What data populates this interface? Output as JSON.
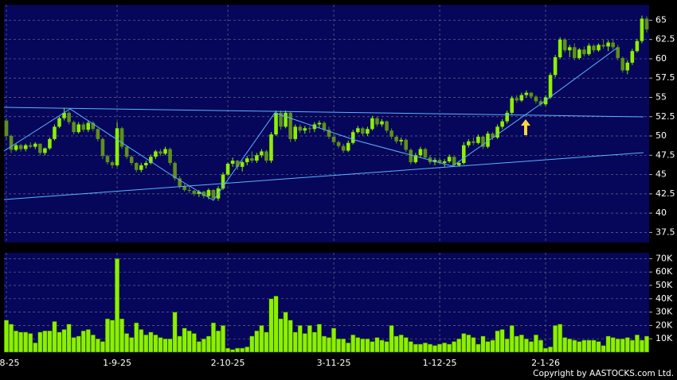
{
  "chart_data": [
    {
      "type": "candlestick",
      "categories": [
        "8-25",
        null,
        null,
        null,
        null,
        null,
        null,
        null,
        null,
        null,
        null,
        null,
        null,
        null,
        null,
        null,
        null,
        null,
        null,
        null,
        null,
        null,
        null,
        "1-9-25",
        null,
        null,
        null,
        null,
        null,
        null,
        null,
        null,
        null,
        null,
        null,
        null,
        null,
        null,
        null,
        null,
        null,
        null,
        null,
        null,
        null,
        null,
        "2-10-25",
        null,
        null,
        null,
        null,
        null,
        null,
        null,
        null,
        null,
        null,
        null,
        null,
        null,
        null,
        null,
        null,
        null,
        null,
        null,
        null,
        null,
        "3-11-25",
        null,
        null,
        null,
        null,
        null,
        null,
        null,
        null,
        null,
        null,
        null,
        null,
        null,
        null,
        null,
        null,
        null,
        null,
        null,
        null,
        null,
        "1-12-25",
        null,
        null,
        null,
        null,
        null,
        null,
        null,
        null,
        null,
        null,
        null,
        null,
        null,
        null,
        null,
        null,
        null,
        null,
        null,
        null,
        null,
        "2-1-26",
        null,
        null,
        null,
        null,
        null,
        null,
        null,
        null,
        null,
        null,
        null,
        null,
        null,
        null,
        null,
        null,
        null,
        null,
        null,
        null,
        null
      ],
      "ohlc": [
        [
          52,
          52.3,
          49.5,
          50
        ],
        [
          50,
          50.2,
          47.8,
          48.2
        ],
        [
          48.2,
          49,
          48,
          48.8
        ],
        [
          48.8,
          49,
          48,
          48.3
        ],
        [
          48.3,
          49,
          48,
          48.8
        ],
        [
          48.8,
          49.2,
          48.4,
          48.6
        ],
        [
          48.6,
          49.2,
          48.3,
          49
        ],
        [
          49,
          49,
          47.5,
          47.8
        ],
        [
          47.8,
          48.5,
          47.5,
          48.4
        ],
        [
          48.4,
          49.8,
          48.2,
          49.6
        ],
        [
          49.6,
          51.5,
          49.4,
          51.2
        ],
        [
          51.2,
          52.5,
          51,
          52.3
        ],
        [
          52.3,
          53.6,
          52,
          53
        ],
        [
          53,
          53.2,
          51.5,
          51.8
        ],
        [
          51.8,
          52,
          50.2,
          50.5
        ],
        [
          50.5,
          51.8,
          50.3,
          51.5
        ],
        [
          51.5,
          51.8,
          50.5,
          50.8
        ],
        [
          50.8,
          52,
          50.5,
          51.7
        ],
        [
          51.7,
          51.9,
          50.6,
          50.9
        ],
        [
          50.9,
          51,
          49.3,
          49.6
        ],
        [
          49.6,
          49.8,
          47,
          47.4
        ],
        [
          47.4,
          47.6,
          46.3,
          46.6
        ],
        [
          46.6,
          46.8,
          45.8,
          46.2
        ],
        [
          46.2,
          51.8,
          46,
          51
        ],
        [
          51,
          51.2,
          48.3,
          48.6
        ],
        [
          48.6,
          48.8,
          47,
          47.3
        ],
        [
          47.3,
          47.5,
          46.2,
          46.5
        ],
        [
          46.5,
          46.6,
          45.3,
          45.6
        ],
        [
          45.6,
          46.5,
          45.3,
          46.2
        ],
        [
          46.2,
          46.8,
          45.8,
          46.5
        ],
        [
          46.5,
          47.6,
          46.3,
          47.3
        ],
        [
          47.3,
          48.2,
          47,
          48
        ],
        [
          48,
          48.3,
          47.4,
          47.7
        ],
        [
          47.7,
          48.6,
          47.5,
          48.3
        ],
        [
          48.3,
          48.5,
          46.2,
          46.5
        ],
        [
          46.5,
          46.7,
          44.2,
          44.5
        ],
        [
          44.5,
          44.8,
          43.2,
          43.5
        ],
        [
          43.5,
          43.8,
          42.8,
          43
        ],
        [
          43,
          43.5,
          42.6,
          42.9
        ],
        [
          42.9,
          43,
          42.2,
          42.5
        ],
        [
          42.5,
          43,
          42.1,
          42.8
        ],
        [
          42.8,
          42.9,
          41.9,
          42.2
        ],
        [
          42.2,
          43.2,
          41.8,
          43
        ],
        [
          43,
          43.1,
          41.6,
          41.9
        ],
        [
          41.9,
          43.5,
          41.6,
          43.2
        ],
        [
          43.2,
          45.3,
          43,
          45
        ],
        [
          45,
          46.6,
          44.8,
          46.4
        ],
        [
          46.4,
          47.2,
          46,
          46.8
        ],
        [
          46.8,
          46.9,
          45.6,
          46
        ],
        [
          46,
          46.8,
          45.4,
          46.6
        ],
        [
          46.6,
          47.4,
          46.2,
          47.1
        ],
        [
          47.1,
          48,
          46.5,
          46.8
        ],
        [
          46.8,
          47.8,
          46.5,
          47.5
        ],
        [
          47.5,
          48.3,
          47.2,
          48
        ],
        [
          48,
          48.2,
          46.5,
          46.8
        ],
        [
          46.8,
          50.5,
          46.5,
          50.2
        ],
        [
          50.2,
          53.3,
          50,
          53
        ],
        [
          53,
          53.3,
          50.8,
          51.2
        ],
        [
          51.2,
          53.3,
          51,
          53
        ],
        [
          53,
          53.2,
          49.2,
          49.6
        ],
        [
          49.6,
          51.5,
          49.3,
          51.2
        ],
        [
          51.2,
          51.5,
          50.4,
          50.7
        ],
        [
          50.7,
          51.3,
          50.3,
          51
        ],
        [
          51,
          51.3,
          50.4,
          50.9
        ],
        [
          50.9,
          51.8,
          50.5,
          51.5
        ],
        [
          51.5,
          52,
          51,
          51.7
        ],
        [
          51.7,
          51.9,
          50.5,
          50.8
        ],
        [
          50.8,
          51.2,
          49.6,
          49.9
        ],
        [
          49.9,
          50.2,
          48.9,
          49.2
        ],
        [
          49.2,
          49.4,
          48.4,
          48.7
        ],
        [
          48.7,
          49,
          47.8,
          48.1
        ],
        [
          48.1,
          49.4,
          47.9,
          49.1
        ],
        [
          49.1,
          50.8,
          48.9,
          50.5
        ],
        [
          50.5,
          51.3,
          50.3,
          51
        ],
        [
          51,
          51.2,
          50,
          50.3
        ],
        [
          50.3,
          51.2,
          50,
          50.9
        ],
        [
          50.9,
          52.6,
          50.7,
          52.3
        ],
        [
          52.3,
          52.5,
          51.2,
          51.5
        ],
        [
          51.5,
          52.2,
          51.2,
          51.9
        ],
        [
          51.9,
          52,
          50.4,
          50.7
        ],
        [
          50.7,
          51,
          49.6,
          49.9
        ],
        [
          49.9,
          50.1,
          49,
          49.3
        ],
        [
          49.3,
          49.8,
          48.8,
          49.5
        ],
        [
          49.5,
          49.7,
          47.9,
          48.2
        ],
        [
          48.2,
          48.4,
          46.3,
          46.6
        ],
        [
          46.6,
          47.8,
          46.4,
          47.5
        ],
        [
          47.5,
          48.6,
          47.2,
          48.3
        ],
        [
          48.3,
          48.5,
          47,
          47.2
        ],
        [
          47.2,
          47.5,
          46.3,
          46.6
        ],
        [
          46.6,
          47.2,
          46.2,
          46.9
        ],
        [
          46.9,
          47.2,
          46.3,
          46.5
        ],
        [
          46.5,
          47,
          46,
          46.7
        ],
        [
          46.7,
          47.6,
          46.5,
          47.3
        ],
        [
          47.3,
          47.4,
          46,
          46.2
        ],
        [
          46.2,
          46.8,
          46,
          46.5
        ],
        [
          46.5,
          49.2,
          46.3,
          48.8
        ],
        [
          48.8,
          49.6,
          48.5,
          49.3
        ],
        [
          49.3,
          49.8,
          48.8,
          49.1
        ],
        [
          49.1,
          50.2,
          48.9,
          49.9
        ],
        [
          49.9,
          50,
          48.3,
          48.6
        ],
        [
          48.6,
          50.6,
          48.4,
          50.3
        ],
        [
          50.3,
          50.5,
          49.5,
          49.8
        ],
        [
          49.8,
          51.5,
          49.6,
          51.2
        ],
        [
          51.2,
          52.2,
          50.9,
          51.9
        ],
        [
          51.9,
          53.3,
          51.6,
          53
        ],
        [
          53,
          55.2,
          52.8,
          54.9
        ],
        [
          54.9,
          55.3,
          54.3,
          54.6
        ],
        [
          54.6,
          55.6,
          54.4,
          55.3
        ],
        [
          55.3,
          55.9,
          55,
          55.6
        ],
        [
          55.6,
          55.7,
          54.8,
          55.1
        ],
        [
          55.1,
          55.3,
          54.2,
          54.5
        ],
        [
          54.5,
          54.8,
          53.8,
          54.1
        ],
        [
          54.1,
          55.3,
          53.9,
          55
        ],
        [
          55,
          58.2,
          54.8,
          57.9
        ],
        [
          57.9,
          60.5,
          57.6,
          60.2
        ],
        [
          60.2,
          62.8,
          60,
          62.5
        ],
        [
          62.5,
          62.7,
          60.8,
          61.1
        ],
        [
          61.1,
          61.8,
          60.2,
          61.5
        ],
        [
          61.5,
          62,
          59.8,
          60.1
        ],
        [
          60.1,
          61.4,
          59.9,
          61.2
        ],
        [
          61.2,
          61.6,
          60.3,
          60.6
        ],
        [
          60.6,
          62,
          60.4,
          61.7
        ],
        [
          61.7,
          61.9,
          60.8,
          61.1
        ],
        [
          61.1,
          62,
          60.9,
          61.8
        ],
        [
          61.8,
          62.5,
          61.3,
          61.6
        ],
        [
          61.6,
          62.4,
          61,
          62.1
        ],
        [
          62.1,
          62.6,
          61.2,
          61.5
        ],
        [
          61.5,
          61.8,
          59.8,
          60.1
        ],
        [
          60.1,
          60.3,
          58.2,
          58.5
        ],
        [
          58.5,
          59.8,
          58,
          59.5
        ],
        [
          59.5,
          61.3,
          59.2,
          61
        ],
        [
          61,
          62.6,
          60.8,
          62.3
        ],
        [
          62.3,
          65.6,
          62,
          65.2
        ],
        [
          65.2,
          65.5,
          63.4,
          63.8
        ]
      ],
      "up_color": "#8cf000",
      "down_color": "#5f8f1a",
      "ylim": [
        36.2,
        67
      ],
      "yticks": [
        37.5,
        40,
        42.5,
        45,
        47.5,
        50,
        52.5,
        55,
        57.5,
        60,
        62.5,
        65
      ],
      "grid": true
    },
    {
      "type": "bar",
      "values": [
        24000,
        21000,
        16000,
        15000,
        15000,
        14000,
        7000,
        15000,
        16000,
        16000,
        23000,
        15000,
        17000,
        21000,
        11000,
        12000,
        16000,
        17000,
        13000,
        10000,
        8000,
        25000,
        24000,
        70000,
        25000,
        14000,
        11000,
        22000,
        17000,
        13000,
        15000,
        13000,
        11000,
        10000,
        10000,
        30000,
        12000,
        18000,
        16000,
        14000,
        8000,
        10000,
        12000,
        22000,
        16000,
        20000,
        3000,
        2000,
        3000,
        3000,
        4000,
        12000,
        16000,
        20000,
        15000,
        40000,
        42000,
        25000,
        30000,
        24000,
        15000,
        20000,
        14000,
        20000,
        15000,
        21000,
        12000,
        11000,
        18000,
        10000,
        10000,
        7000,
        13000,
        11000,
        10000,
        10000,
        8000,
        11000,
        9000,
        8000,
        20000,
        12000,
        13000,
        11000,
        8000,
        6000,
        6000,
        7000,
        6000,
        5000,
        6000,
        7000,
        6000,
        8000,
        10000,
        14000,
        13000,
        11000,
        6000,
        12000,
        8000,
        9000,
        16000,
        17000,
        10000,
        20000,
        12000,
        13000,
        10000,
        8000,
        13000,
        9000,
        3000,
        4000,
        20000,
        21000,
        11000,
        10000,
        9000,
        8000,
        9000,
        9000,
        9000,
        8000,
        5000,
        12000,
        11000,
        10000,
        10000,
        11000,
        9000,
        13000,
        9000,
        12000
      ],
      "color": "#8cf000",
      "ylim": [
        0,
        74400
      ],
      "yticks": [
        {
          "value": 10000,
          "label": "10K"
        },
        {
          "value": 20000,
          "label": "20K"
        },
        {
          "value": 30000,
          "label": "30K"
        },
        {
          "value": 40000,
          "label": "40K"
        },
        {
          "value": 50000,
          "label": "50K"
        },
        {
          "value": 60000,
          "label": "60K"
        },
        {
          "value": 70000,
          "label": "70K"
        }
      ],
      "grid": true
    }
  ],
  "footer": "Copyright by AASTOCKS.com Ltd."
}
